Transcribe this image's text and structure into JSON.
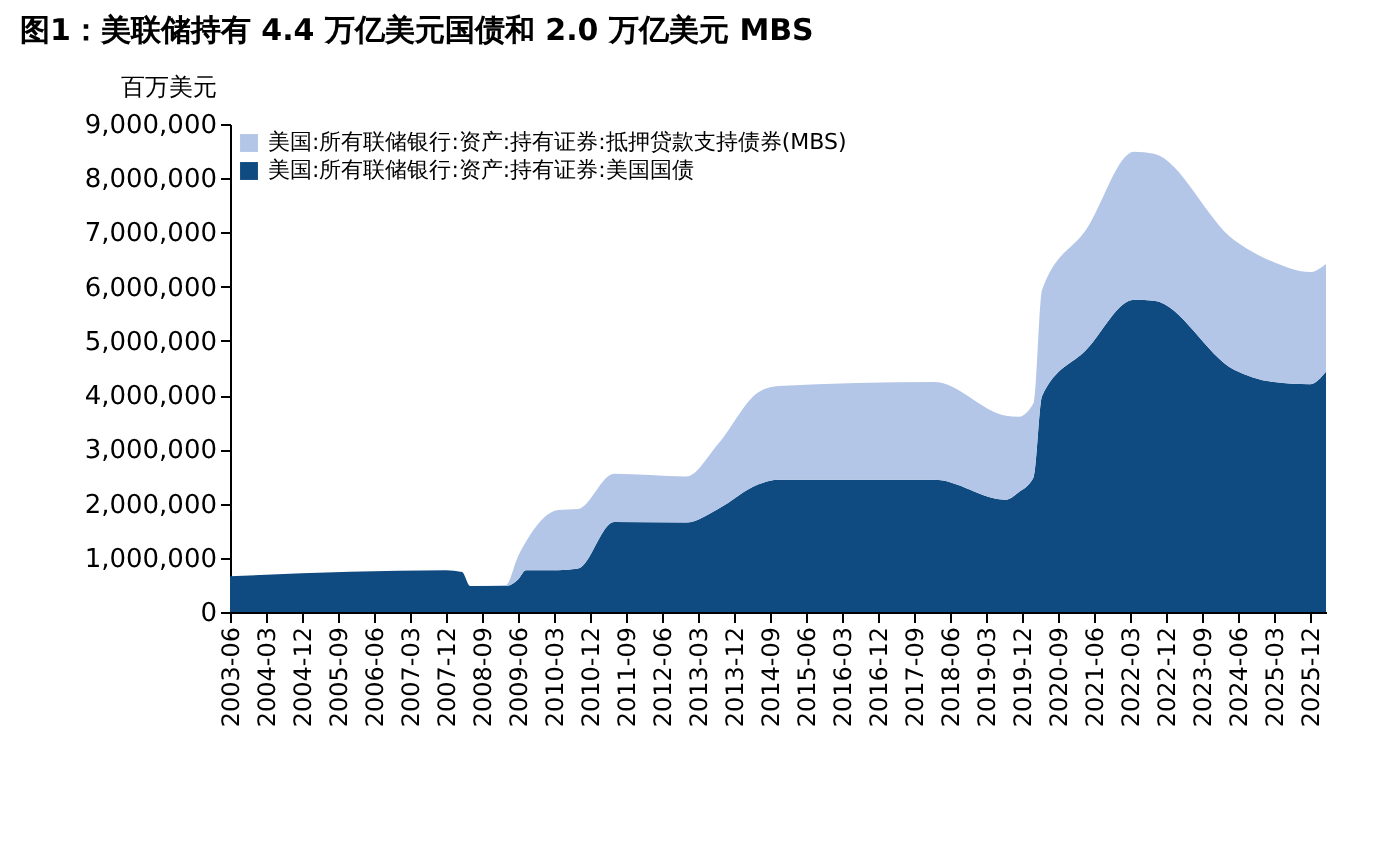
{
  "chart_data": {
    "type": "area",
    "stacked": true,
    "title": "图1：美联储持有 4.4 万亿美元国债和 2.0 万亿美元 MBS",
    "ylabel": "百万美元",
    "x": [
      "2003-06",
      "2007-12",
      "2008-04",
      "2008-06",
      "2009-03",
      "2009-06",
      "2009-08",
      "2010-04",
      "2010-09",
      "2011-06",
      "2012-12",
      "2013-08",
      "2014-06",
      "2014-11",
      "2018-02",
      "2019-08",
      "2019-11",
      "2020-03",
      "2020-05",
      "2021-04",
      "2022-04",
      "2022-09",
      "2024-05",
      "2025-03",
      "2025-12",
      "2026-04"
    ],
    "series": [
      {
        "name": "美国:所有联储银行:资产:持有证券:美国国债",
        "color": "#0f4a80",
        "values": [
          660000,
          770000,
          740000,
          480000,
          480000,
          600000,
          770000,
          770000,
          800000,
          1660000,
          1650000,
          1900000,
          2350000,
          2440000,
          2440000,
          2070000,
          2200000,
          2500000,
          3980000,
          4830000,
          5760000,
          5740000,
          4470000,
          4240000,
          4200000,
          4430000
        ]
      },
      {
        "name": "美国:所有联储银行:资产:持有证券:抵押贷款支持债券(MBS)",
        "color": "#b4c6e7",
        "values": [
          0,
          0,
          0,
          0,
          20000,
          430000,
          530000,
          1110000,
          1100000,
          890000,
          850000,
          1200000,
          1700000,
          1730000,
          1800000,
          1550000,
          1400000,
          1370000,
          1960000,
          2220000,
          2730000,
          2710000,
          2390000,
          2210000,
          2070000,
          1990000
        ]
      }
    ],
    "xlim": [
      "2003-06",
      "2026-04"
    ],
    "xticks": [
      "2003-06",
      "2004-03",
      "2004-12",
      "2005-09",
      "2006-06",
      "2007-03",
      "2007-12",
      "2008-09",
      "2009-06",
      "2010-03",
      "2010-12",
      "2011-09",
      "2012-06",
      "2013-03",
      "2013-12",
      "2014-09",
      "2015-06",
      "2016-03",
      "2016-12",
      "2017-09",
      "2018-06",
      "2019-03",
      "2019-12",
      "2020-09",
      "2021-06",
      "2022-03",
      "2022-12",
      "2023-09",
      "2024-06",
      "2025-03",
      "2025-12"
    ],
    "ylim": [
      0,
      9000000
    ],
    "yticks": [
      0,
      {
        "value": 1000000,
        "label": "1,000,000"
      },
      {
        "value": 2000000,
        "label": "2,000,000"
      },
      {
        "value": 3000000,
        "label": "3,000,000"
      },
      {
        "value": 4000000,
        "label": "4,000,000"
      },
      {
        "value": 5000000,
        "label": "5,000,000"
      },
      {
        "value": 6000000,
        "label": "6,000,000"
      },
      {
        "value": 7000000,
        "label": "7,000,000"
      },
      {
        "value": 8000000,
        "label": "8,000,000"
      },
      {
        "value": 9000000,
        "label": "9,000,000"
      }
    ],
    "grid": false,
    "legend": "top left"
  }
}
